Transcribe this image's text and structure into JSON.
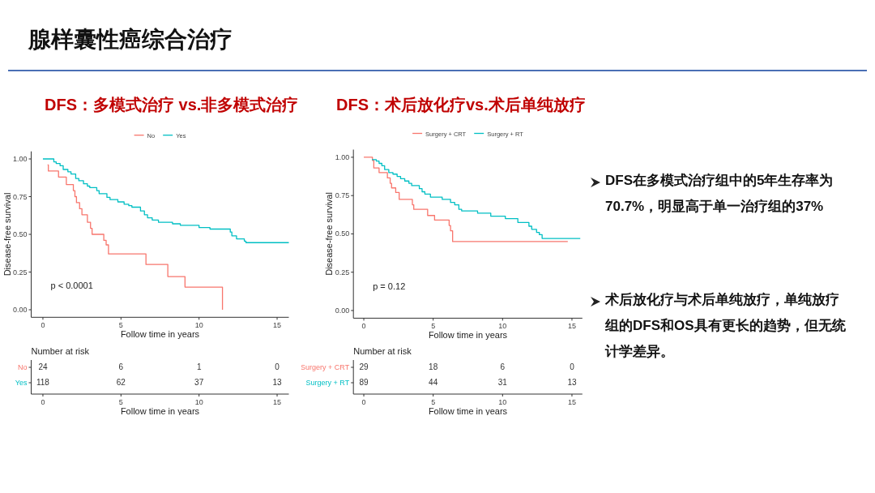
{
  "chart_data": [
    {
      "type": "other",
      "title": "腺样囊性癌综合治疗"
    },
    {
      "type": "step",
      "title": "DFS：多模式治疗 vs.非多模式治疗",
      "xlabel": "Follow time in years",
      "ylabel": "Disease-free survival",
      "xlim": [
        -0.75,
        15.75
      ],
      "ylim": [
        -0.05,
        1.05
      ],
      "xticks": [
        0,
        5,
        10,
        15
      ],
      "yticks": [
        {
          "value": 0,
          "label": "0.00"
        },
        {
          "value": 0.25,
          "label": "0.25"
        },
        {
          "value": 0.5,
          "label": "0.50"
        },
        {
          "value": 0.75,
          "label": "0.75"
        },
        {
          "value": 1,
          "label": "1.00"
        }
      ],
      "legend": "top",
      "annotations": [
        "p < 0.0001"
      ],
      "series": [
        {
          "name": "No",
          "color": "#f8766d",
          "x": [
            0.3,
            0.35,
            1.0,
            1.5,
            1.95,
            2.05,
            2.15,
            2.35,
            2.5,
            2.85,
            3.05,
            3.15,
            3.9,
            4.05,
            4.2,
            6.6,
            8.0,
            9.1,
            11.5
          ],
          "values": [
            0.96,
            0.92,
            0.88,
            0.83,
            0.79,
            0.75,
            0.71,
            0.67,
            0.63,
            0.58,
            0.54,
            0.5,
            0.46,
            0.43,
            0.37,
            0.3,
            0.22,
            0.15,
            0.0
          ]
        },
        {
          "name": "Yes",
          "color": "#00bfc4",
          "x": [
            0,
            0.7,
            0.85,
            1.1,
            1.3,
            1.6,
            1.8,
            2.1,
            2.3,
            2.6,
            2.85,
            3.0,
            3.45,
            3.6,
            4.1,
            4.3,
            4.8,
            5.2,
            5.5,
            5.7,
            6.25,
            6.5,
            6.7,
            7.0,
            7.4,
            8.3,
            8.8,
            10.0,
            10.7,
            12.0,
            12.1,
            12.4,
            12.9,
            13.0,
            15.75
          ],
          "values": [
            1.0,
            0.98,
            0.97,
            0.955,
            0.93,
            0.915,
            0.9,
            0.87,
            0.855,
            0.835,
            0.82,
            0.81,
            0.79,
            0.77,
            0.745,
            0.73,
            0.715,
            0.7,
            0.69,
            0.68,
            0.655,
            0.63,
            0.61,
            0.595,
            0.58,
            0.57,
            0.56,
            0.545,
            0.535,
            0.515,
            0.49,
            0.47,
            0.455,
            0.445,
            0.445
          ]
        }
      ]
    },
    {
      "type": "heatmap",
      "title": "Number at risk",
      "xlabel": "Follow time in years",
      "categories": [
        "0",
        "5",
        "10",
        "15"
      ],
      "y_categories": [
        "No",
        "Yes"
      ],
      "colors": [
        "#f8766d",
        "#00bfc4"
      ],
      "data_labels": true,
      "cells": [
        [
          24,
          6,
          1,
          0
        ],
        [
          118,
          62,
          37,
          13
        ]
      ]
    },
    {
      "type": "step",
      "title": "DFS：术后放化疗vs.术后单纯放疗",
      "xlabel": "Follow time in years",
      "ylabel": "Disease-free survival",
      "xlim": [
        -0.75,
        15.75
      ],
      "ylim": [
        -0.05,
        1.05
      ],
      "xticks": [
        0,
        5,
        10,
        15
      ],
      "yticks": [
        {
          "value": 0,
          "label": "0.00"
        },
        {
          "value": 0.25,
          "label": "0.25"
        },
        {
          "value": 0.5,
          "label": "0.50"
        },
        {
          "value": 0.75,
          "label": "0.75"
        },
        {
          "value": 1,
          "label": "1.00"
        }
      ],
      "legend": "top",
      "annotations": [
        "p = 0.12"
      ],
      "series": [
        {
          "name": "Surgery + CRT",
          "color": "#f8766d",
          "x": [
            0,
            0.62,
            0.72,
            1.1,
            1.7,
            1.9,
            2.0,
            2.3,
            2.55,
            3.5,
            3.6,
            4.6,
            5.1,
            6.15,
            6.25,
            6.4,
            14.7
          ],
          "values": [
            1.0,
            0.98,
            0.93,
            0.9,
            0.865,
            0.83,
            0.8,
            0.77,
            0.725,
            0.69,
            0.66,
            0.62,
            0.59,
            0.555,
            0.52,
            0.45,
            0.45
          ]
        },
        {
          "name": "Surgery + RT",
          "color": "#00bfc4",
          "x": [
            0.58,
            0.9,
            1.1,
            1.3,
            1.5,
            1.8,
            2.1,
            2.4,
            2.65,
            2.95,
            3.25,
            3.45,
            4.0,
            4.2,
            4.4,
            4.8,
            5.65,
            6.25,
            6.55,
            6.85,
            7.05,
            8.2,
            9.15,
            10.2,
            11.1,
            11.9,
            12.1,
            12.45,
            12.65,
            12.85,
            15.6
          ],
          "values": [
            0.985,
            0.975,
            0.96,
            0.945,
            0.92,
            0.9,
            0.89,
            0.875,
            0.86,
            0.845,
            0.83,
            0.815,
            0.795,
            0.775,
            0.76,
            0.74,
            0.725,
            0.705,
            0.69,
            0.66,
            0.65,
            0.635,
            0.615,
            0.6,
            0.575,
            0.55,
            0.53,
            0.51,
            0.495,
            0.47,
            0.47
          ]
        }
      ]
    },
    {
      "type": "heatmap",
      "title": "Number at risk",
      "xlabel": "Follow time in years",
      "categories": [
        "0",
        "5",
        "10",
        "15"
      ],
      "y_categories": [
        "Surgery + CRT",
        "Surgery + RT"
      ],
      "colors": [
        "#f8766d",
        "#00bfc4"
      ],
      "data_labels": true,
      "cells": [
        [
          29,
          18,
          6,
          0
        ],
        [
          89,
          44,
          31,
          13
        ]
      ]
    },
    {
      "type": "other",
      "annotations": [
        "DFS在多模式治疗组中的5年生存率为70.7%，明显高于单一治疗组的37%",
        "术后放化疗与术后单纯放疗，单纯放疗组的DFS和OS具有更长的趋势，但无统计学差异。"
      ]
    }
  ]
}
